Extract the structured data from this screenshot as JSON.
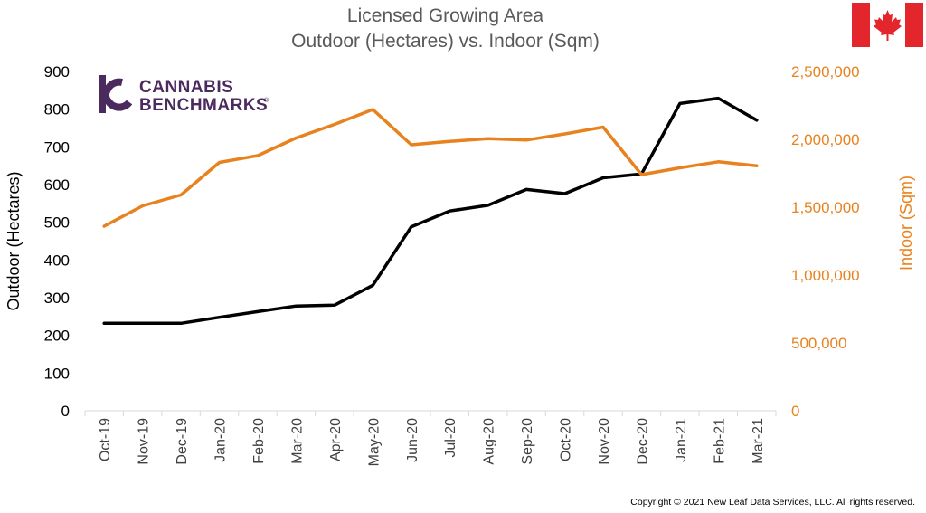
{
  "title_lines": [
    "Licensed Growing Area",
    "Outdoor (Hectares) vs. Indoor (Sqm)"
  ],
  "copyright": "Copyright © 2021 New Leaf Data Services, LLC. All rights reserved.",
  "logo": {
    "line1": "CANNABIS",
    "line2": "BENCHMARKS",
    "mark": "®"
  },
  "flag_icon": "canada-flag-icon",
  "colors": {
    "outdoor": "#000000",
    "indoor": "#e8821e",
    "left_axis_text": "#000000",
    "right_axis_text": "#e8821e",
    "title": "#595959",
    "logo": "#4b2a5e",
    "flag_red": "#e3262c"
  },
  "chart_data": {
    "type": "line",
    "title": "Licensed Growing Area\nOutdoor (Hectares) vs. Indoor (Sqm)",
    "categories": [
      "Oct-19",
      "Nov-19",
      "Dec-19",
      "Jan-20",
      "Feb-20",
      "Mar-20",
      "Apr-20",
      "May-20",
      "Jun-20",
      "Jul-20",
      "Aug-20",
      "Sep-20",
      "Oct-20",
      "Nov-20",
      "Dec-20",
      "Jan-21",
      "Feb-21",
      "Mar-21"
    ],
    "series": [
      {
        "name": "",
        "axis": "left",
        "values": [
          232,
          232,
          232,
          248,
          263,
          278,
          280,
          333,
          488,
          530,
          545,
          587,
          576,
          618,
          628,
          815,
          829,
          771
        ]
      },
      {
        "name": "",
        "axis": "right",
        "values": [
          1360000,
          1510000,
          1590000,
          1830000,
          1880000,
          2010000,
          2110000,
          2220000,
          1960000,
          1985000,
          2005000,
          1995000,
          2040000,
          2090000,
          1740000,
          1790000,
          1835000,
          1805000
        ]
      }
    ],
    "ylabel": "Outdoor (Hectares)",
    "ylabel_right": "Indoor (Sqm)",
    "ylim": [
      0,
      900
    ],
    "ylim_right": [
      0,
      2500000
    ],
    "yticks": [
      "0",
      "100",
      "200",
      "300",
      "400",
      "500",
      "600",
      "700",
      "800",
      "900"
    ],
    "yticks_right": [
      "0",
      "500,000",
      "1,000,000",
      "1,500,000",
      "2,000,000",
      "2,500,000"
    ],
    "grid": false,
    "legend": "none"
  }
}
